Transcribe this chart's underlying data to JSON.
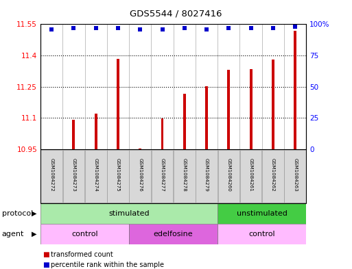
{
  "title": "GDS5544 / 8027416",
  "samples": [
    "GSM1084272",
    "GSM1084273",
    "GSM1084274",
    "GSM1084275",
    "GSM1084276",
    "GSM1084277",
    "GSM1084278",
    "GSM1084279",
    "GSM1084260",
    "GSM1084261",
    "GSM1084262",
    "GSM1084263"
  ],
  "bar_values": [
    10.952,
    11.093,
    11.12,
    11.385,
    10.953,
    11.097,
    11.215,
    11.252,
    11.33,
    11.335,
    11.38,
    11.52
  ],
  "percentile_values": [
    96,
    97,
    97,
    97,
    96,
    96,
    97,
    96,
    97,
    97,
    97,
    98
  ],
  "ymin": 10.95,
  "ymax": 11.55,
  "yticks": [
    10.95,
    11.1,
    11.25,
    11.4,
    11.55
  ],
  "ytick_labels": [
    "10.95",
    "11.1",
    "11.25",
    "11.4",
    "11.55"
  ],
  "right_yticks": [
    0,
    25,
    50,
    75,
    100
  ],
  "right_ytick_labels": [
    "0",
    "25",
    "50",
    "75",
    "100%"
  ],
  "bar_color": "#cc0000",
  "percentile_color": "#0000cc",
  "protocol_groups": [
    {
      "label": "stimulated",
      "start": 0,
      "end": 7,
      "color": "#aaeaaa"
    },
    {
      "label": "unstimulated",
      "start": 8,
      "end": 11,
      "color": "#44cc44"
    }
  ],
  "agent_groups": [
    {
      "label": "control",
      "start": 0,
      "end": 3,
      "color": "#ffbbff"
    },
    {
      "label": "edelfosine",
      "start": 4,
      "end": 7,
      "color": "#dd66dd"
    },
    {
      "label": "control",
      "start": 8,
      "end": 11,
      "color": "#ffbbff"
    }
  ],
  "legend_bar_label": "transformed count",
  "legend_pct_label": "percentile rank within the sample",
  "protocol_label": "protocol",
  "agent_label": "agent",
  "bar_width": 0.12,
  "fig_width": 5.13,
  "fig_height": 3.93
}
